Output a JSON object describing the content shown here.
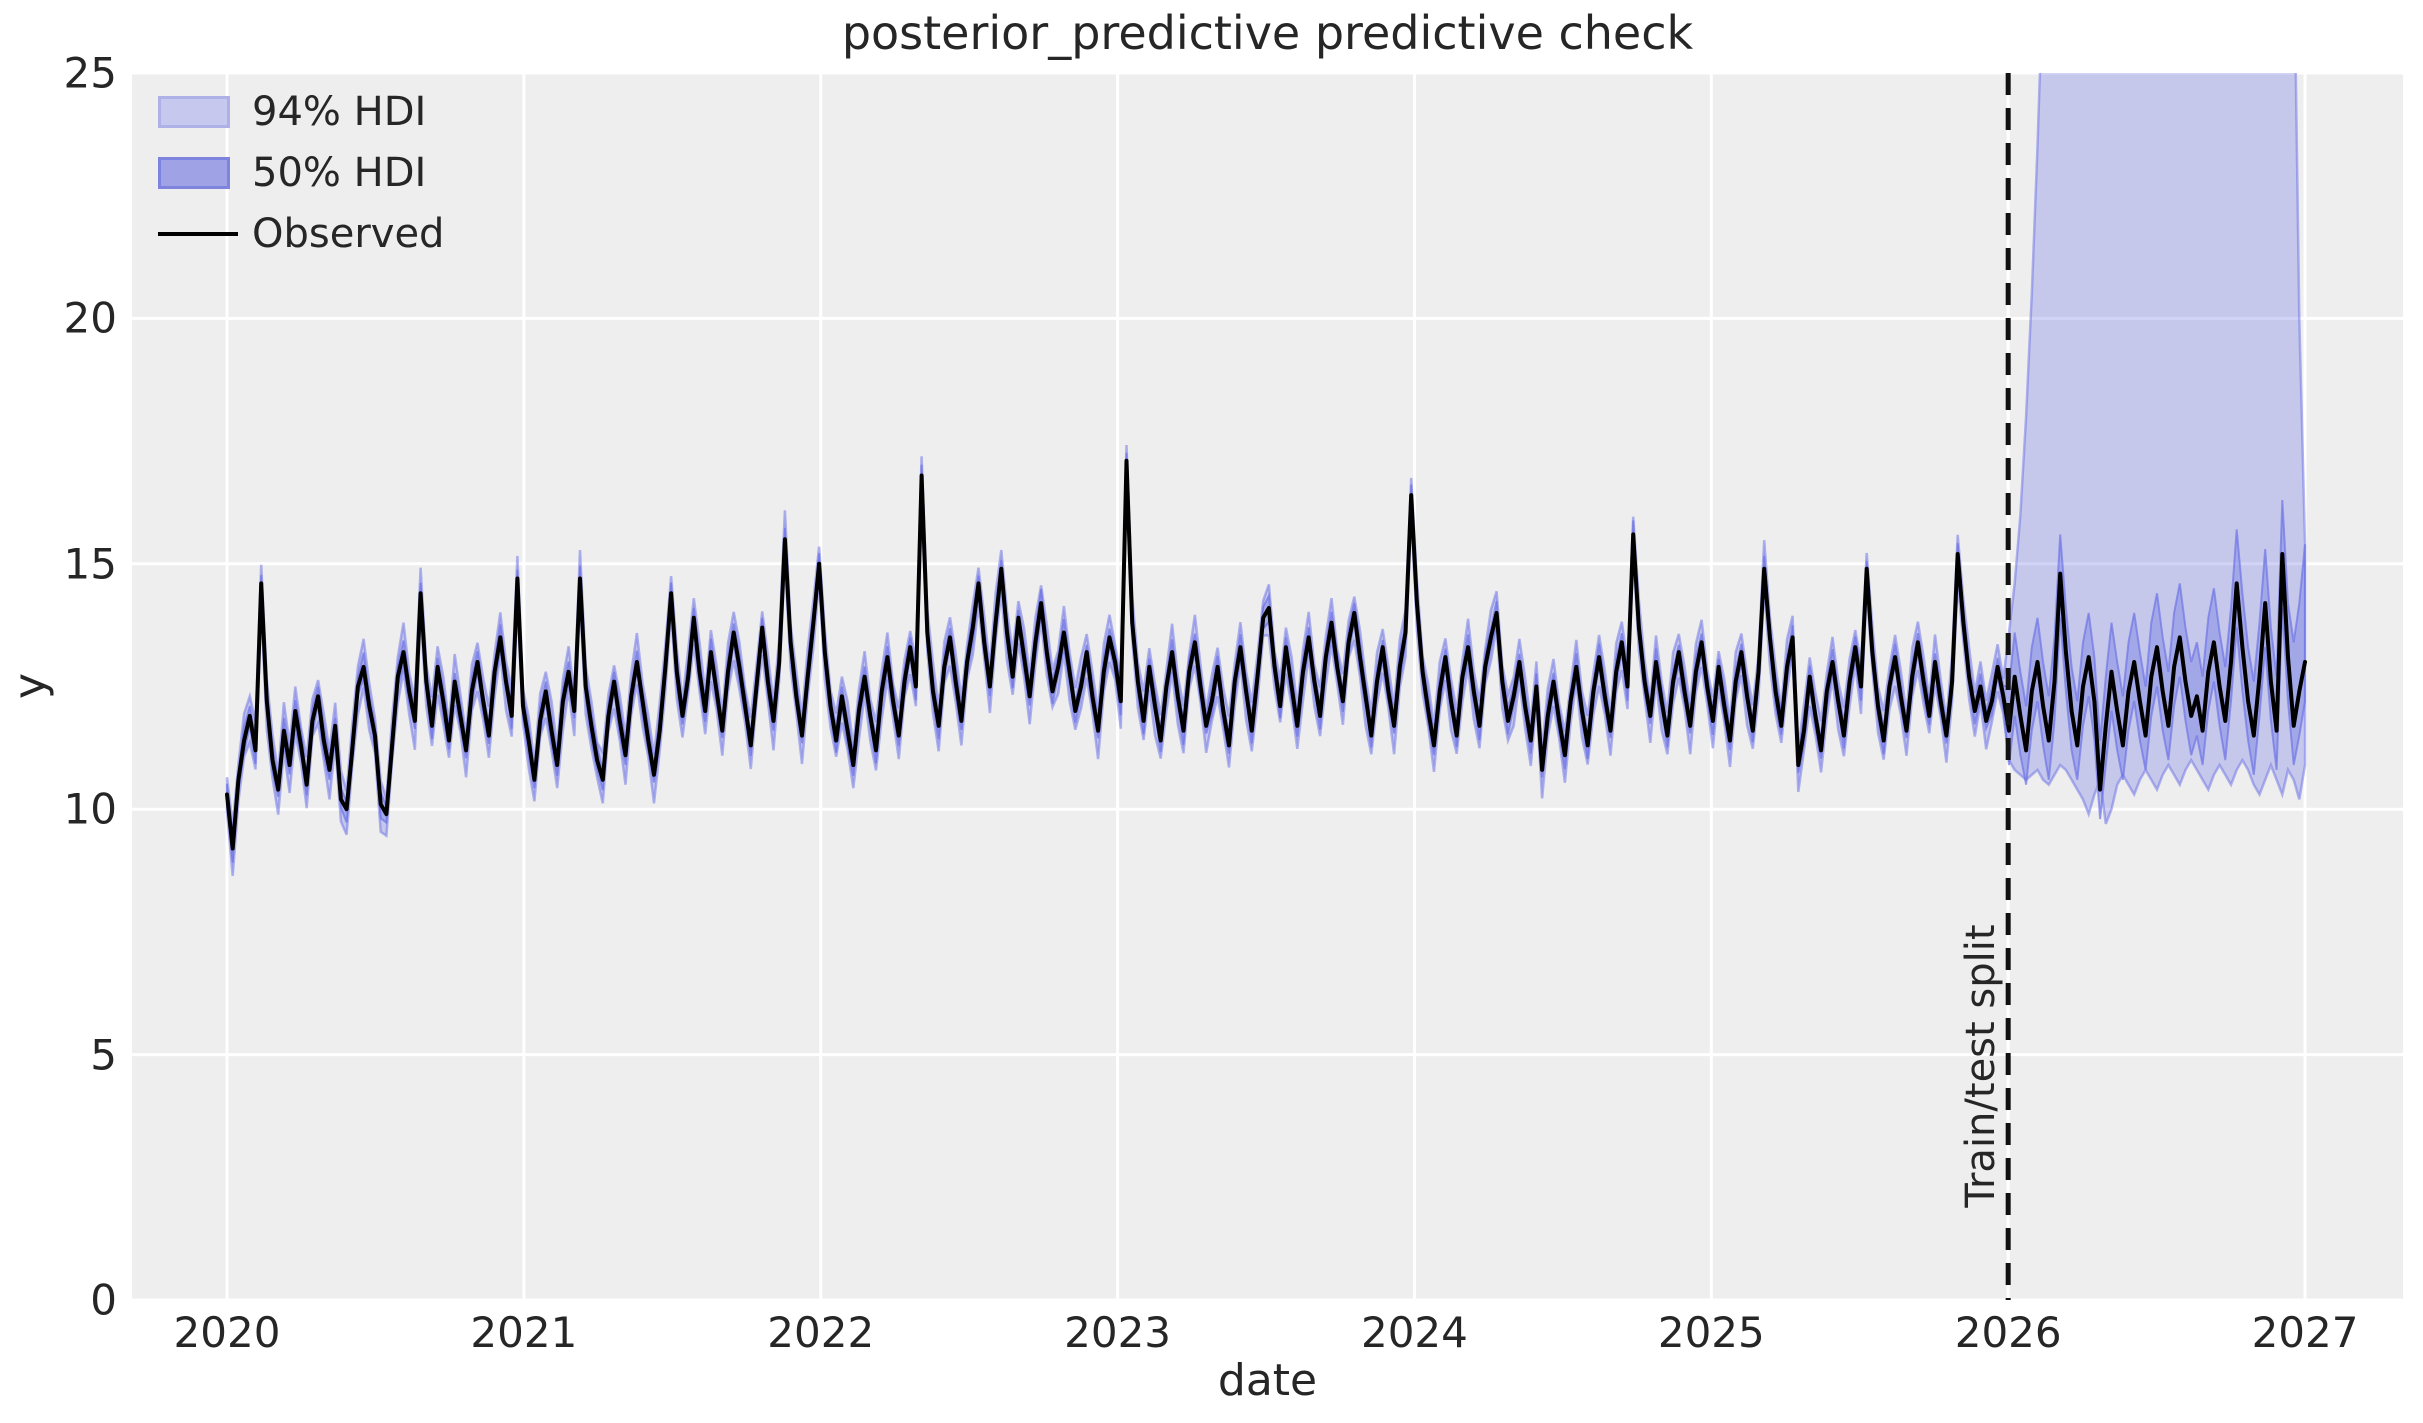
{
  "figure": {
    "title": "posterior_predictive predictive check",
    "xlabel": "date",
    "ylabel": "y",
    "axes_background": "#eeeeee",
    "grid_color": "#ffffff",
    "text_color": "#262626",
    "observed_color": "#000000",
    "hdi_base_color_rgb": "106,112,229",
    "hdi94_fill_alpha": 0.3,
    "hdi50_fill_alpha": 0.38,
    "band_edge_alpha": 0.5
  },
  "legend": {
    "items": [
      {
        "label": "94% HDI",
        "swatch": "patch",
        "fill": "#c6c8ee",
        "border": "#aeb1e8"
      },
      {
        "label": "50% HDI",
        "swatch": "patch",
        "fill": "#9fa3e6",
        "border": "#7e83dd"
      },
      {
        "label": "Observed",
        "swatch": "line",
        "color": "#000000"
      }
    ]
  },
  "split": {
    "label": "Train/test split",
    "x": 2026.0,
    "color": "#111111",
    "dash": "22 13",
    "width": 5
  },
  "chart_data": {
    "type": "line",
    "title": "posterior_predictive predictive check",
    "xlabel": "date",
    "ylabel": "y",
    "xlim": [
      2019.68,
      2027.33
    ],
    "ylim": [
      0,
      25
    ],
    "xticks": [
      2020,
      2021,
      2022,
      2023,
      2024,
      2025,
      2026,
      2027
    ],
    "yticks": [
      0,
      5,
      10,
      15,
      20,
      25
    ],
    "grid": true,
    "legend_position": "upper left",
    "x_start": 2020.0,
    "x_step_years": 0.0191781,
    "series": [
      {
        "name": "Observed",
        "color": "#000000",
        "values": [
          10.3,
          9.2,
          10.6,
          11.4,
          11.9,
          11.2,
          14.6,
          12.2,
          11.0,
          10.4,
          11.6,
          10.9,
          12.0,
          11.3,
          10.5,
          11.8,
          12.3,
          11.4,
          10.8,
          11.7,
          10.2,
          10.0,
          11.2,
          12.5,
          12.9,
          12.1,
          11.5,
          10.1,
          9.9,
          11.3,
          12.7,
          13.2,
          12.4,
          11.8,
          14.4,
          12.6,
          11.7,
          12.9,
          12.2,
          11.4,
          12.6,
          11.9,
          11.2,
          12.4,
          13.0,
          12.2,
          11.5,
          12.8,
          13.5,
          12.6,
          11.9,
          14.7,
          12.1,
          11.4,
          10.6,
          11.8,
          12.4,
          11.6,
          10.9,
          12.2,
          12.8,
          12.0,
          14.7,
          12.5,
          11.7,
          11.0,
          10.6,
          11.9,
          12.6,
          11.8,
          11.1,
          12.3,
          13.0,
          12.2,
          11.4,
          10.7,
          11.6,
          12.9,
          14.4,
          12.8,
          11.9,
          12.7,
          13.9,
          12.8,
          12.0,
          13.2,
          12.4,
          11.6,
          12.8,
          13.6,
          12.9,
          12.1,
          11.3,
          12.5,
          13.7,
          12.6,
          11.8,
          13.0,
          15.5,
          13.4,
          12.3,
          11.5,
          12.7,
          13.8,
          15.0,
          13.2,
          12.1,
          11.4,
          12.3,
          11.6,
          10.9,
          12.0,
          12.7,
          11.9,
          11.2,
          12.4,
          13.1,
          12.2,
          11.5,
          12.6,
          13.3,
          12.5,
          16.8,
          13.6,
          12.4,
          11.7,
          12.9,
          13.5,
          12.6,
          11.8,
          13.0,
          13.7,
          14.6,
          13.4,
          12.5,
          13.8,
          14.9,
          13.6,
          12.7,
          13.9,
          13.1,
          12.3,
          13.4,
          14.2,
          13.2,
          12.4,
          12.9,
          13.6,
          12.8,
          12.0,
          12.5,
          13.2,
          12.3,
          11.6,
          12.8,
          13.5,
          13.0,
          12.2,
          17.1,
          13.8,
          12.6,
          11.8,
          12.9,
          12.1,
          11.4,
          12.5,
          13.2,
          12.3,
          11.6,
          12.8,
          13.4,
          12.5,
          11.7,
          12.2,
          12.9,
          12.0,
          11.3,
          12.6,
          13.3,
          12.4,
          11.6,
          12.7,
          13.9,
          14.1,
          12.9,
          12.1,
          13.3,
          12.5,
          11.7,
          12.8,
          13.5,
          12.6,
          11.9,
          13.1,
          13.8,
          12.9,
          12.2,
          13.4,
          14.0,
          13.1,
          12.3,
          11.5,
          12.6,
          13.3,
          12.4,
          11.7,
          12.9,
          13.6,
          16.4,
          14.2,
          12.8,
          12.0,
          11.3,
          12.4,
          13.1,
          12.2,
          11.5,
          12.7,
          13.3,
          12.4,
          11.7,
          12.9,
          13.5,
          14.0,
          12.6,
          11.8,
          12.3,
          13.0,
          12.1,
          11.4,
          12.5,
          10.8,
          11.9,
          12.6,
          11.8,
          11.1,
          12.2,
          12.9,
          12.0,
          11.3,
          12.4,
          13.1,
          12.3,
          11.6,
          12.8,
          13.4,
          12.5,
          15.6,
          13.7,
          12.6,
          11.9,
          13.0,
          12.2,
          11.5,
          12.6,
          13.2,
          12.4,
          11.7,
          12.8,
          13.4,
          12.5,
          11.8,
          12.9,
          12.1,
          11.4,
          12.6,
          13.2,
          12.3,
          11.6,
          12.8,
          14.9,
          13.5,
          12.4,
          11.7,
          12.9,
          13.5,
          10.9,
          11.6,
          12.7,
          11.9,
          11.2,
          12.4,
          13.0,
          12.2,
          11.5,
          12.6,
          13.3,
          12.5,
          14.9,
          13.2,
          12.1,
          11.4,
          12.5,
          13.1,
          12.3,
          11.6,
          12.7,
          13.4,
          12.6,
          11.9,
          13.0,
          12.2,
          11.5,
          12.6,
          15.2,
          13.8,
          12.7,
          12.0,
          12.5,
          11.8,
          12.2,
          12.9,
          12.3,
          11.6,
          12.7,
          11.9,
          11.2,
          12.4,
          13.0,
          12.1,
          11.4,
          12.6,
          14.8,
          13.2,
          12.0,
          11.3,
          12.5,
          13.1,
          12.2,
          10.4,
          11.7,
          12.8,
          12.0,
          11.3,
          12.4,
          13.0,
          12.2,
          11.5,
          12.7,
          13.3,
          12.4,
          11.7,
          12.9,
          13.5,
          12.6,
          11.9,
          12.3,
          11.6,
          12.8,
          13.4,
          12.5,
          11.8,
          13.0,
          14.6,
          13.3,
          12.2,
          11.5,
          12.7,
          14.2,
          12.6,
          11.6,
          15.2,
          13.1,
          11.7,
          12.4,
          13.0
        ]
      }
    ],
    "hdi": {
      "test_start_index": 313,
      "train94_halfwidth": 0.3,
      "train50_halfwidth": 0.14,
      "train_jitter": [
        0.05,
        0.18,
        0.02,
        0.25,
        0.1,
        0.3,
        0.08,
        0.15,
        0.22,
        0.04,
        0.28,
        0.12,
        0.2,
        0.06,
        0.26,
        0.14,
        0.03,
        0.24,
        0.09,
        0.17,
        0.29,
        0.07,
        0.21,
        0.11,
        0.27,
        0.16
      ],
      "test94_upper": [
        13.6,
        14.6,
        16.0,
        18.0,
        20.5,
        23.5,
        27,
        31,
        35,
        38,
        40,
        42,
        43,
        44,
        44,
        45,
        45,
        44,
        44,
        45,
        45,
        44,
        43,
        44,
        45,
        44,
        43,
        44,
        45,
        44,
        43,
        44,
        45,
        44,
        43,
        44,
        45,
        44,
        43,
        44,
        45,
        44,
        43,
        42,
        43,
        44,
        43,
        42,
        40,
        36,
        28,
        20,
        15.4
      ],
      "test94_lower": [
        11.0,
        10.8,
        10.7,
        10.6,
        10.7,
        10.8,
        10.6,
        10.5,
        10.7,
        10.9,
        10.8,
        10.6,
        10.4,
        10.2,
        9.9,
        10.3,
        10.6,
        9.7,
        10.0,
        10.5,
        10.7,
        10.5,
        10.3,
        10.6,
        10.8,
        10.6,
        10.4,
        10.7,
        10.9,
        10.7,
        10.5,
        10.8,
        11.0,
        10.8,
        10.6,
        10.4,
        10.7,
        10.9,
        10.7,
        10.5,
        10.8,
        11.0,
        10.8,
        10.5,
        10.3,
        10.6,
        10.9,
        10.6,
        10.3,
        10.8,
        10.6,
        10.2,
        10.9
      ],
      "test50_upper": [
        12.5,
        13.6,
        12.8,
        12.1,
        13.3,
        13.9,
        13.0,
        12.3,
        13.5,
        15.6,
        14.1,
        12.9,
        12.2,
        13.4,
        14.0,
        13.1,
        11.4,
        12.7,
        13.8,
        13.0,
        12.3,
        13.4,
        14.0,
        13.2,
        12.5,
        13.8,
        14.4,
        13.5,
        12.8,
        14.0,
        14.6,
        13.7,
        13.0,
        13.4,
        12.7,
        13.9,
        14.5,
        13.6,
        12.9,
        14.1,
        15.7,
        14.4,
        13.3,
        12.6,
        13.8,
        15.3,
        13.7,
        12.7,
        16.3,
        14.2,
        13.4,
        14.2,
        15.4
      ],
      "test50_lower": [
        10.9,
        11.9,
        11.1,
        10.5,
        11.6,
        12.2,
        11.3,
        10.6,
        11.8,
        13.9,
        12.4,
        11.2,
        10.6,
        11.7,
        12.3,
        11.4,
        9.8,
        10.9,
        12.0,
        11.2,
        10.6,
        11.6,
        12.2,
        11.4,
        10.8,
        11.9,
        12.5,
        11.6,
        11.0,
        12.1,
        12.7,
        11.8,
        11.1,
        11.5,
        10.9,
        12.0,
        12.6,
        11.7,
        11.0,
        12.2,
        13.7,
        12.4,
        11.4,
        10.7,
        11.9,
        13.3,
        11.8,
        10.8,
        14.1,
        12.2,
        10.9,
        11.5,
        12.2
      ]
    }
  }
}
